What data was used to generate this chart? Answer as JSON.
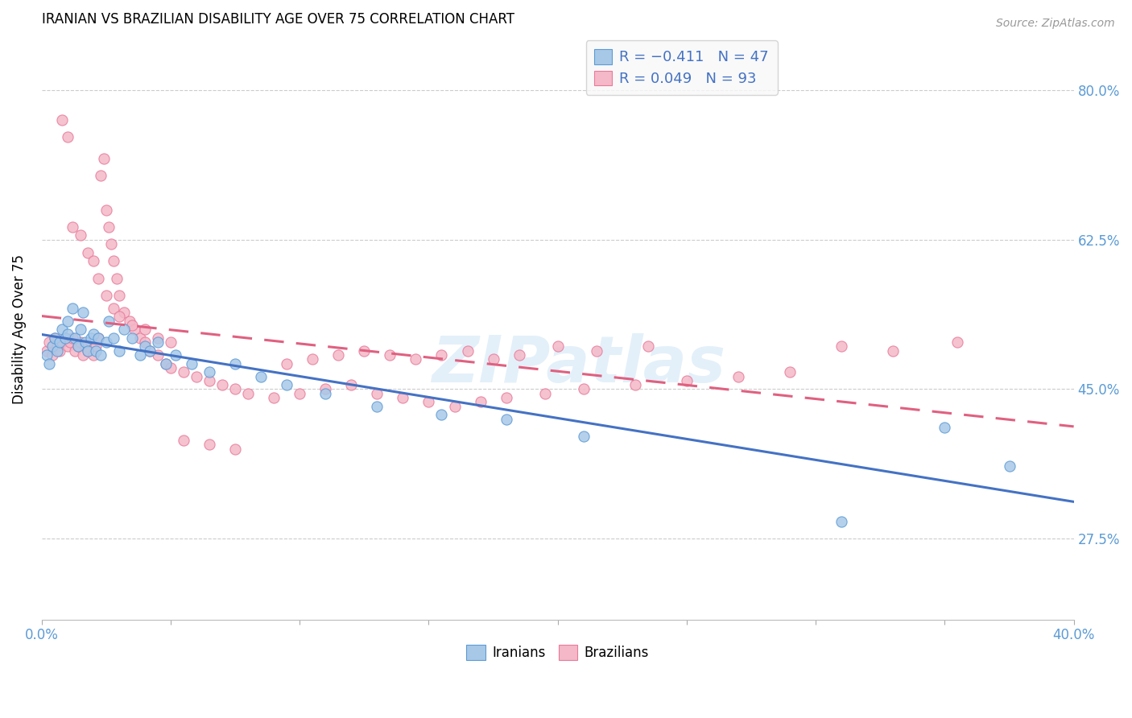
{
  "title": "IRANIAN VS BRAZILIAN DISABILITY AGE OVER 75 CORRELATION CHART",
  "source": "Source: ZipAtlas.com",
  "ylabel": "Disability Age Over 75",
  "yticks": [
    0.275,
    0.45,
    0.625,
    0.8
  ],
  "ytick_labels": [
    "27.5%",
    "45.0%",
    "62.5%",
    "80.0%"
  ],
  "xlim": [
    0.0,
    0.4
  ],
  "ylim": [
    0.18,
    0.86
  ],
  "iranian_color": "#a8c8e8",
  "iranian_color_dark": "#5b9bd5",
  "brazilian_color": "#f4b8c8",
  "brazilian_color_dark": "#e87a9a",
  "trend_iranian_color": "#4472c4",
  "trend_brazilian_color": "#e06080",
  "iranians_label": "Iranians",
  "brazilians_label": "Brazilians",
  "watermark": "ZIPatlas",
  "iranians_x": [
    0.002,
    0.003,
    0.004,
    0.005,
    0.006,
    0.007,
    0.008,
    0.009,
    0.01,
    0.01,
    0.012,
    0.013,
    0.014,
    0.015,
    0.016,
    0.017,
    0.018,
    0.019,
    0.02,
    0.021,
    0.022,
    0.023,
    0.025,
    0.026,
    0.028,
    0.03,
    0.032,
    0.035,
    0.038,
    0.04,
    0.042,
    0.045,
    0.048,
    0.052,
    0.058,
    0.065,
    0.075,
    0.085,
    0.095,
    0.11,
    0.13,
    0.155,
    0.18,
    0.21,
    0.31,
    0.35,
    0.375
  ],
  "iranians_y": [
    0.49,
    0.48,
    0.5,
    0.51,
    0.495,
    0.505,
    0.52,
    0.51,
    0.515,
    0.53,
    0.545,
    0.51,
    0.5,
    0.52,
    0.54,
    0.505,
    0.495,
    0.51,
    0.515,
    0.495,
    0.51,
    0.49,
    0.505,
    0.53,
    0.51,
    0.495,
    0.52,
    0.51,
    0.49,
    0.5,
    0.495,
    0.505,
    0.48,
    0.49,
    0.48,
    0.47,
    0.48,
    0.465,
    0.455,
    0.445,
    0.43,
    0.42,
    0.415,
    0.395,
    0.295,
    0.405,
    0.36
  ],
  "brazilians_x": [
    0.002,
    0.003,
    0.004,
    0.005,
    0.006,
    0.007,
    0.008,
    0.009,
    0.01,
    0.011,
    0.012,
    0.013,
    0.014,
    0.015,
    0.016,
    0.017,
    0.018,
    0.019,
    0.02,
    0.021,
    0.022,
    0.023,
    0.024,
    0.025,
    0.026,
    0.027,
    0.028,
    0.029,
    0.03,
    0.032,
    0.034,
    0.036,
    0.038,
    0.04,
    0.042,
    0.045,
    0.048,
    0.05,
    0.055,
    0.06,
    0.065,
    0.07,
    0.075,
    0.08,
    0.09,
    0.1,
    0.11,
    0.12,
    0.13,
    0.14,
    0.15,
    0.16,
    0.17,
    0.18,
    0.195,
    0.21,
    0.23,
    0.25,
    0.27,
    0.29,
    0.095,
    0.105,
    0.115,
    0.125,
    0.135,
    0.145,
    0.155,
    0.165,
    0.175,
    0.185,
    0.2,
    0.215,
    0.235,
    0.055,
    0.065,
    0.075,
    0.008,
    0.01,
    0.012,
    0.015,
    0.018,
    0.02,
    0.022,
    0.025,
    0.028,
    0.03,
    0.035,
    0.04,
    0.045,
    0.05,
    0.31,
    0.33,
    0.355
  ],
  "brazilians_y": [
    0.495,
    0.505,
    0.49,
    0.51,
    0.5,
    0.495,
    0.505,
    0.51,
    0.5,
    0.505,
    0.51,
    0.495,
    0.5,
    0.505,
    0.49,
    0.5,
    0.495,
    0.505,
    0.49,
    0.5,
    0.51,
    0.7,
    0.72,
    0.66,
    0.64,
    0.62,
    0.6,
    0.58,
    0.56,
    0.54,
    0.53,
    0.52,
    0.51,
    0.505,
    0.495,
    0.49,
    0.48,
    0.475,
    0.47,
    0.465,
    0.46,
    0.455,
    0.45,
    0.445,
    0.44,
    0.445,
    0.45,
    0.455,
    0.445,
    0.44,
    0.435,
    0.43,
    0.435,
    0.44,
    0.445,
    0.45,
    0.455,
    0.46,
    0.465,
    0.47,
    0.48,
    0.485,
    0.49,
    0.495,
    0.49,
    0.485,
    0.49,
    0.495,
    0.485,
    0.49,
    0.5,
    0.495,
    0.5,
    0.39,
    0.385,
    0.38,
    0.765,
    0.745,
    0.64,
    0.63,
    0.61,
    0.6,
    0.58,
    0.56,
    0.545,
    0.535,
    0.525,
    0.52,
    0.51,
    0.505,
    0.5,
    0.495,
    0.505
  ]
}
